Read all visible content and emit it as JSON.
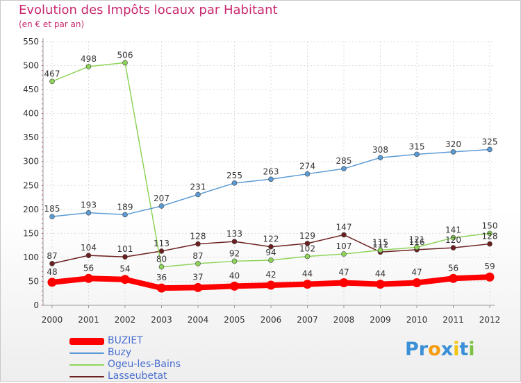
{
  "chart_data": {
    "type": "line",
    "title": "Evolution des Impôts locaux par Habitant",
    "subtitle": "(en € et par an)",
    "xlabel": "",
    "ylabel": "",
    "ylim": [
      0,
      550
    ],
    "yticks": [
      0,
      50,
      100,
      150,
      200,
      250,
      300,
      350,
      400,
      450,
      500,
      550
    ],
    "x": [
      "2000",
      "2001",
      "2002",
      "2003",
      "2004",
      "2005",
      "2006",
      "2007",
      "2008",
      "2009",
      "2010",
      "2011",
      "2012"
    ],
    "series": [
      {
        "name": "BUZIET",
        "color": "#ff0000",
        "values": [
          48,
          56,
          54,
          36,
          37,
          40,
          42,
          44,
          47,
          44,
          47,
          56,
          59
        ]
      },
      {
        "name": "Buzy",
        "color": "#5b9bd5",
        "values": [
          185,
          193,
          189,
          207,
          231,
          255,
          263,
          274,
          285,
          308,
          315,
          320,
          325
        ]
      },
      {
        "name": "Ogeu-les-Bains",
        "color": "#8fd45a",
        "values": [
          467,
          498,
          506,
          80,
          87,
          92,
          94,
          102,
          107,
          115,
          121,
          141,
          150
        ]
      },
      {
        "name": "Lasseubetat",
        "color": "#6b1f1f",
        "values": [
          87,
          104,
          101,
          113,
          128,
          133,
          122,
          129,
          147,
          111,
          116,
          120,
          128
        ]
      }
    ]
  },
  "branding": {
    "letters": [
      "P",
      "r",
      "o",
      "x",
      "i",
      "t",
      "i"
    ],
    "colors": [
      "#3b8fd6",
      "#3b8fd6",
      "#f39c12",
      "#3b8fd6",
      "#f1c40f",
      "#3b8fd6",
      "#7ac143"
    ]
  }
}
